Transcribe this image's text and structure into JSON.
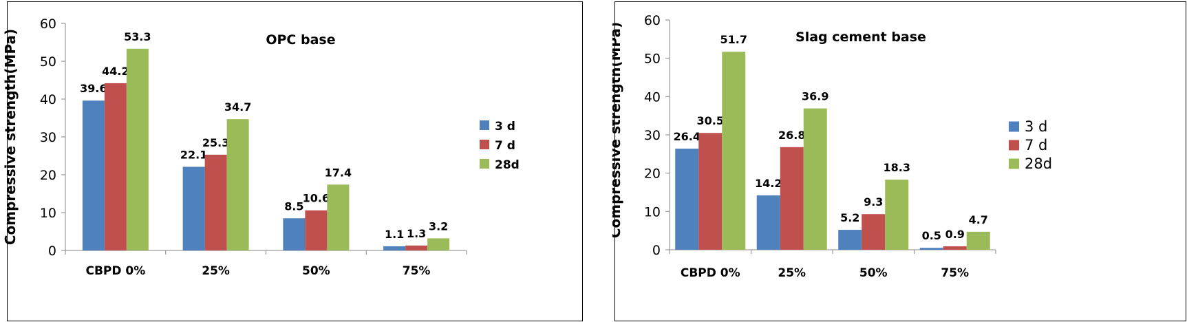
{
  "chart_data": [
    {
      "type": "bar",
      "title": "OPC base",
      "xlabel": "",
      "ylabel": "Compressive strength(MPa)",
      "ylim": [
        0,
        60
      ],
      "yticks": [
        0,
        10,
        20,
        30,
        40,
        50,
        60
      ],
      "categories": [
        "CBPD 0%",
        "25%",
        "50%",
        "75%"
      ],
      "series": [
        {
          "name": "3 d",
          "color": "#4f81bd",
          "values": [
            39.6,
            22.1,
            8.5,
            1.1
          ],
          "labels": [
            "39.6",
            "22.1",
            "8.5",
            "1.1"
          ]
        },
        {
          "name": "7 d",
          "color": "#c0504d",
          "values": [
            44.2,
            25.3,
            10.6,
            1.3
          ],
          "labels": [
            "44.2",
            "25.3",
            "10.6",
            "1.3"
          ]
        },
        {
          "name": "28d",
          "color": "#9bbb59",
          "values": [
            53.3,
            34.7,
            17.4,
            3.2
          ],
          "labels": [
            "53.3",
            "34.7",
            "17.4",
            "3.2"
          ]
        }
      ],
      "legend": "right",
      "grid": false
    },
    {
      "type": "bar",
      "title": "Slag cement base",
      "xlabel": "",
      "ylabel": "Compressive strength(MPa)",
      "ylim": [
        0,
        60
      ],
      "yticks": [
        0,
        10,
        20,
        30,
        40,
        50,
        60
      ],
      "categories": [
        "CBPD 0%",
        "25%",
        "50%",
        "75%"
      ],
      "series": [
        {
          "name": "3 d",
          "color": "#4f81bd",
          "values": [
            26.4,
            14.2,
            5.2,
            0.5
          ],
          "labels": [
            "26.4",
            "14.2",
            "5.2",
            "0.5"
          ]
        },
        {
          "name": "7 d",
          "color": "#c0504d",
          "values": [
            30.5,
            26.8,
            9.3,
            0.9
          ],
          "labels": [
            "30.5",
            "26.8",
            "9.3",
            "0.9"
          ]
        },
        {
          "name": "28d",
          "color": "#9bbb59",
          "values": [
            51.7,
            36.9,
            18.3,
            4.7
          ],
          "labels": [
            "51.7",
            "36.9",
            "18.3",
            "4.7"
          ]
        }
      ],
      "legend": "right",
      "grid": false
    }
  ]
}
